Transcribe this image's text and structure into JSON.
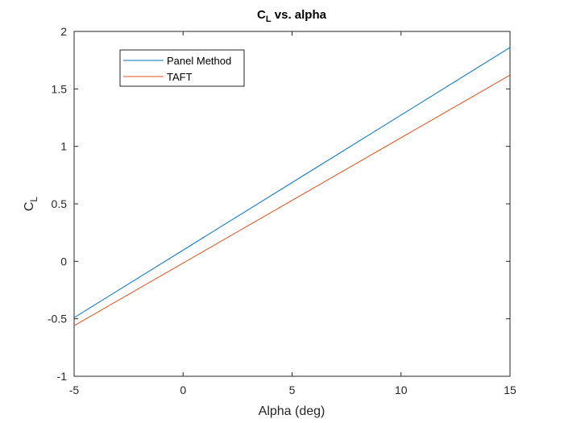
{
  "chart_data": {
    "type": "line",
    "title": {
      "main": "C",
      "sub": "L",
      "rest": " vs. alpha"
    },
    "xlabel": "Alpha (deg)",
    "ylabel": {
      "main": "C",
      "sub": "L"
    },
    "xlim": [
      -5,
      15
    ],
    "ylim": [
      -1,
      2
    ],
    "xticks": [
      -5,
      0,
      5,
      10,
      15
    ],
    "yticks": [
      -1,
      -0.5,
      0,
      0.5,
      1,
      1.5,
      2
    ],
    "xtick_labels": [
      "-5",
      "0",
      "5",
      "10",
      "15"
    ],
    "ytick_labels": [
      "-1",
      "-0.5",
      "0",
      "0.5",
      "1",
      "1.5",
      "2"
    ],
    "grid": false,
    "legend_position": "top-left",
    "series": [
      {
        "name": "Panel Method",
        "color": "#0072BD",
        "x": [
          -5,
          15
        ],
        "y": [
          -0.49,
          1.86
        ]
      },
      {
        "name": "TAFT",
        "color": "#D95319",
        "x": [
          -5,
          15
        ],
        "y": [
          -0.56,
          1.62
        ]
      }
    ]
  }
}
